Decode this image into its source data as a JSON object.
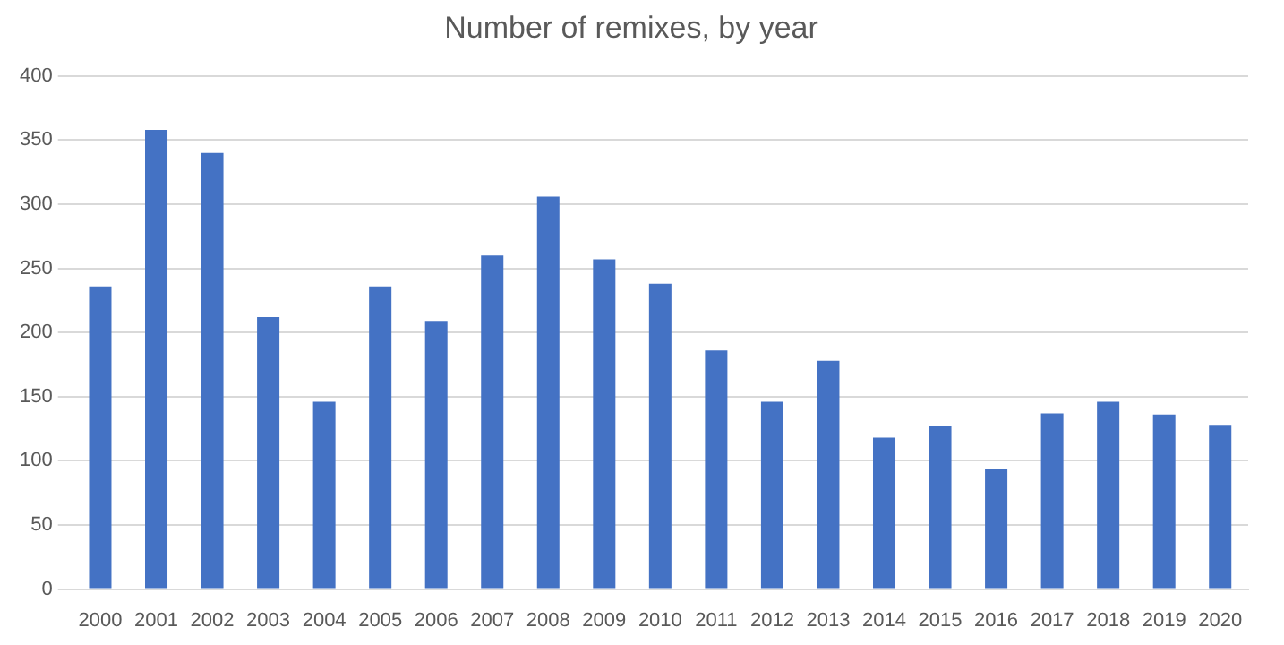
{
  "chart_data": {
    "type": "bar",
    "title": "Number of remixes, by year",
    "categories": [
      "2000",
      "2001",
      "2002",
      "2003",
      "2004",
      "2005",
      "2006",
      "2007",
      "2008",
      "2009",
      "2010",
      "2011",
      "2012",
      "2013",
      "2014",
      "2015",
      "2016",
      "2017",
      "2018",
      "2019",
      "2020"
    ],
    "values": [
      236,
      358,
      340,
      212,
      146,
      236,
      209,
      260,
      306,
      257,
      238,
      186,
      146,
      178,
      118,
      127,
      94,
      137,
      146,
      136,
      128
    ],
    "color": "#4472c4",
    "ylim": [
      0,
      400
    ],
    "yticks": [
      0,
      50,
      100,
      150,
      200,
      250,
      300,
      350,
      400
    ],
    "grid": "y"
  }
}
